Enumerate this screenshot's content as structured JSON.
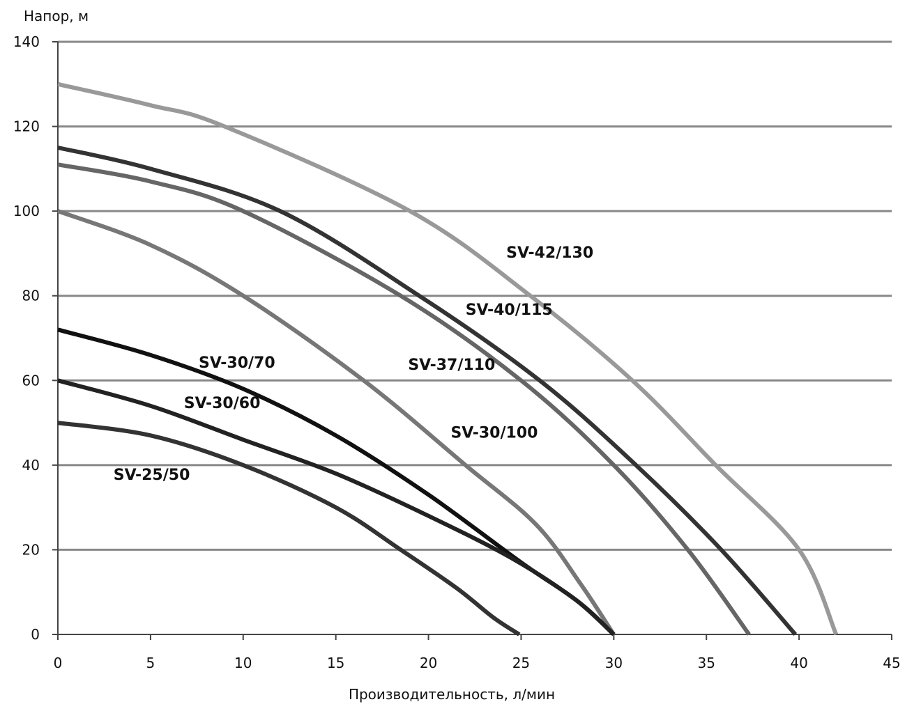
{
  "chart_data": {
    "type": "line",
    "title": "",
    "xlabel": "Производительность, л/мин",
    "ylabel": "Напор, м",
    "xlim": [
      0,
      45
    ],
    "ylim": [
      0,
      140
    ],
    "x_ticks": [
      0,
      5,
      10,
      15,
      20,
      25,
      30,
      35,
      40,
      45
    ],
    "y_ticks": [
      0,
      20,
      40,
      60,
      80,
      100,
      120,
      140
    ],
    "grid": "horizontal",
    "legend": "inline-labels",
    "series": [
      {
        "name": "SV-42/130",
        "color": "#999999",
        "x": [
          0,
          5,
          9,
          19,
          25.5,
          31,
          35.5,
          40,
          42
        ],
        "y": [
          130,
          125,
          120,
          100,
          80,
          60,
          40,
          20,
          0
        ]
      },
      {
        "name": "SV-40/115",
        "color": "#333333",
        "x": [
          0,
          5,
          12,
          19.5,
          26,
          31.2,
          35.8,
          39.8
        ],
        "y": [
          115,
          110,
          100,
          80,
          60,
          40,
          20,
          0
        ]
      },
      {
        "name": "SV-37/110",
        "color": "#666666",
        "x": [
          0,
          5,
          10,
          18.5,
          25,
          30,
          34,
          37.3
        ],
        "y": [
          111,
          107,
          100,
          80,
          60,
          40,
          20,
          0
        ]
      },
      {
        "name": "SV-30/100",
        "color": "#777777",
        "x": [
          0,
          5,
          10,
          16.5,
          22,
          25.8,
          28.2,
          30
        ],
        "y": [
          100,
          92,
          80,
          60,
          40,
          26,
          12,
          0
        ]
      },
      {
        "name": "SV-30/70",
        "color": "#111111",
        "x": [
          0,
          5,
          10,
          15,
          20,
          25,
          28,
          30
        ],
        "y": [
          72,
          66,
          58,
          47,
          33,
          17,
          8,
          0
        ]
      },
      {
        "name": "SV-30/60",
        "color": "#222222",
        "x": [
          0,
          5,
          10,
          15,
          20,
          24.5,
          28,
          30
        ],
        "y": [
          60,
          54,
          46,
          38,
          28,
          18,
          8,
          0
        ]
      },
      {
        "name": "SV-25/50",
        "color": "#333333",
        "x": [
          0,
          5,
          10,
          15,
          18.5,
          21.5,
          23.5,
          24.9
        ],
        "y": [
          50,
          47,
          40,
          30,
          20,
          11,
          4,
          0
        ]
      }
    ],
    "annotations": [
      {
        "text": "SV-42/130",
        "x": 24.2,
        "y": 89
      },
      {
        "text": "SV-40/115",
        "x": 22,
        "y": 75.5
      },
      {
        "text": "SV-37/110",
        "x": 18.9,
        "y": 62.5
      },
      {
        "text": "SV-30/100",
        "x": 21.2,
        "y": 46.5
      },
      {
        "text": "SV-30/70",
        "x": 7.6,
        "y": 63
      },
      {
        "text": "SV-30/60",
        "x": 6.8,
        "y": 53.5
      },
      {
        "text": "SV-25/50",
        "x": 3,
        "y": 36.5
      }
    ]
  }
}
